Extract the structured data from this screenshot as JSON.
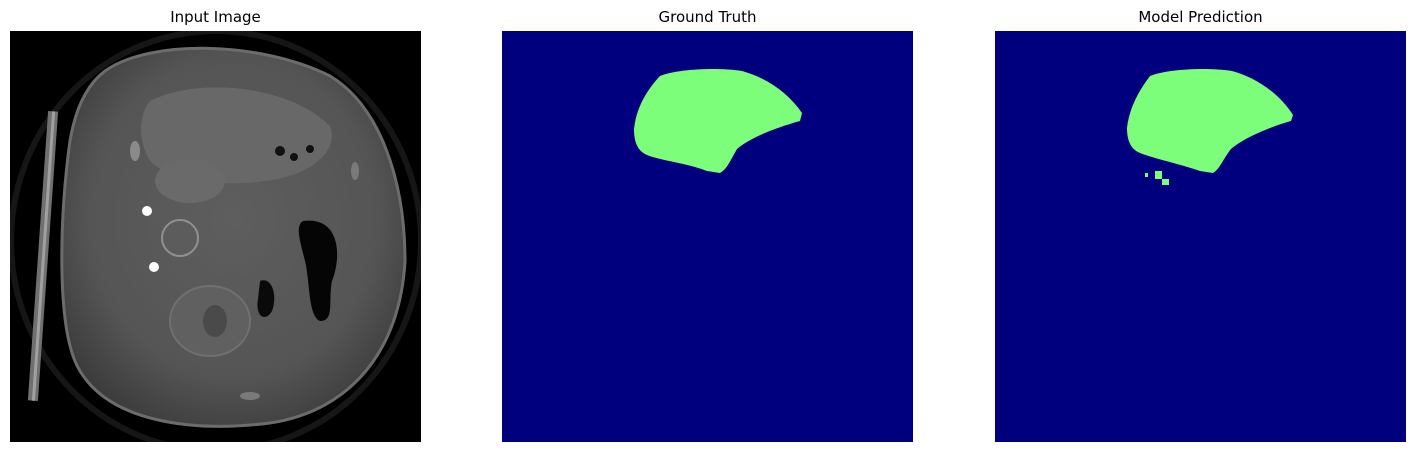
{
  "panels": [
    {
      "title": "Input Image"
    },
    {
      "title": "Ground Truth"
    },
    {
      "title": "Model Prediction"
    }
  ],
  "colors": {
    "figure_background": "#ffffff",
    "image_background": "#000000",
    "mask_background": "#00007f",
    "mask_foreground": "#7dfe7a"
  }
}
